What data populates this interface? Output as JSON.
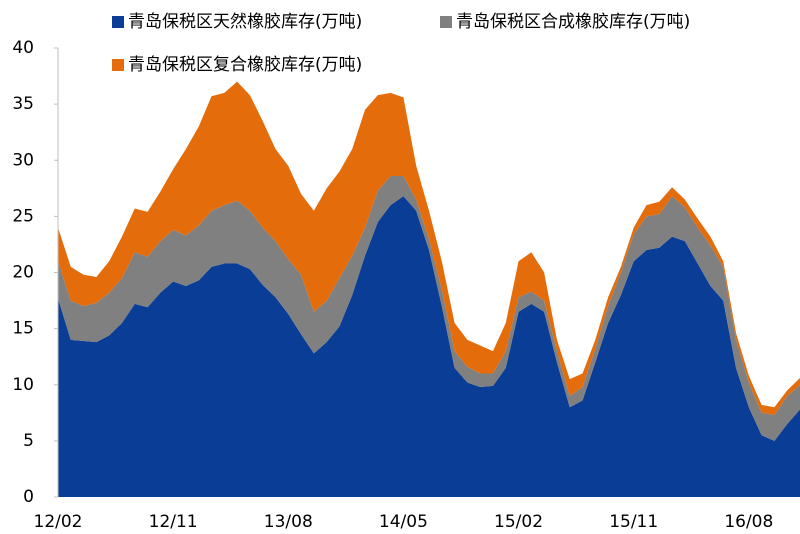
{
  "chart_data": {
    "type": "stacked_area",
    "categories": [
      "12/02",
      null,
      null,
      null,
      null,
      null,
      null,
      null,
      null,
      "12/11",
      null,
      null,
      null,
      null,
      null,
      null,
      null,
      null,
      "13/08",
      null,
      null,
      null,
      null,
      null,
      null,
      null,
      null,
      "14/05",
      null,
      null,
      null,
      null,
      null,
      null,
      null,
      null,
      "15/02",
      null,
      null,
      null,
      null,
      null,
      null,
      null,
      null,
      "15/11",
      null,
      null,
      null,
      null,
      null,
      null,
      null,
      null,
      "16/08",
      null,
      null,
      null,
      null
    ],
    "series": [
      {
        "name": "青岛保税区天然橡胶库存(万吨)",
        "color": "#0a3d96",
        "values": [
          17.7,
          14.0,
          13.9,
          13.8,
          14.4,
          15.5,
          17.2,
          16.9,
          18.2,
          19.2,
          18.8,
          19.3,
          20.5,
          20.8,
          20.8,
          20.3,
          18.9,
          17.8,
          16.3,
          14.5,
          12.8,
          13.8,
          15.2,
          18.0,
          21.5,
          24.5,
          26.0,
          26.8,
          25.5,
          22.0,
          17.0,
          11.5,
          10.2,
          9.8,
          9.9,
          11.5,
          16.5,
          17.2,
          16.5,
          12.0,
          8.0,
          8.6,
          12.0,
          15.5,
          18.0,
          21.0,
          22.0,
          22.2,
          23.2,
          22.8,
          20.8,
          18.8,
          17.5,
          11.5,
          8.0,
          5.5,
          5.0,
          6.5,
          7.8
        ]
      },
      {
        "name": "青岛保税区合成橡胶库存(万吨)",
        "color": "#808080",
        "values": [
          3.3,
          3.5,
          3.1,
          3.5,
          3.8,
          4.0,
          4.6,
          4.5,
          4.6,
          4.6,
          4.5,
          4.9,
          5.0,
          5.2,
          5.6,
          5.2,
          5.1,
          5.0,
          4.9,
          5.3,
          3.7,
          3.7,
          4.3,
          3.5,
          2.5,
          2.8,
          2.6,
          1.8,
          1.0,
          1.0,
          1.5,
          1.5,
          1.4,
          1.2,
          1.1,
          1.5,
          1.3,
          1.1,
          1.0,
          1.0,
          1.0,
          1.2,
          1.2,
          1.5,
          2.0,
          2.4,
          3.0,
          3.0,
          3.6,
          3.0,
          3.2,
          3.6,
          3.0,
          2.5,
          2.2,
          2.0,
          2.3,
          2.5,
          2.2
        ]
      },
      {
        "name": "青岛保税区复合橡胶库存(万吨)",
        "color": "#e46c0a",
        "values": [
          3.0,
          3.0,
          2.8,
          2.3,
          2.8,
          3.7,
          3.9,
          4.0,
          4.4,
          5.4,
          7.7,
          8.8,
          10.2,
          10.0,
          10.6,
          10.3,
          9.5,
          8.2,
          8.3,
          7.2,
          9.0,
          10.0,
          9.5,
          9.5,
          10.5,
          8.5,
          7.4,
          7.0,
          3.0,
          2.5,
          2.5,
          2.5,
          2.4,
          2.5,
          2.0,
          2.5,
          3.2,
          3.5,
          2.5,
          1.0,
          1.5,
          1.2,
          0.8,
          0.8,
          0.5,
          0.6,
          1.0,
          1.1,
          0.8,
          0.7,
          0.8,
          0.8,
          0.5,
          0.6,
          0.6,
          0.7,
          0.7,
          0.5,
          0.6
        ]
      }
    ],
    "ylim": [
      0,
      40
    ],
    "yticks": [
      0,
      5,
      10,
      15,
      20,
      25,
      30,
      35,
      40
    ]
  }
}
